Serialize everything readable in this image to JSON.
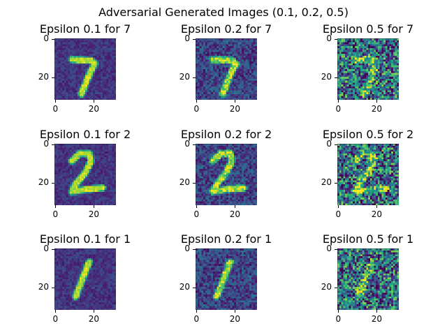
{
  "suptitle": "Adversarial Generated Images (0.1, 0.2, 0.5)",
  "chart_data": {
    "type": "heatmap",
    "colormap": "viridis",
    "grid": false,
    "image_size": [
      32,
      32
    ],
    "xlim": [
      0,
      31
    ],
    "ylim": [
      31,
      0
    ],
    "xticks": [
      "0",
      "20"
    ],
    "yticks": [
      "0",
      "20"
    ],
    "epsilons": [
      0.1,
      0.2,
      0.5
    ],
    "digits": [
      "7",
      "2",
      "1"
    ],
    "panels": [
      {
        "title": "Epsilon 0.1 for 7",
        "epsilon": 0.1,
        "digit": "7"
      },
      {
        "title": "Epsilon 0.2 for 7",
        "epsilon": 0.2,
        "digit": "7"
      },
      {
        "title": "Epsilon 0.5 for 7",
        "epsilon": 0.5,
        "digit": "7"
      },
      {
        "title": "Epsilon 0.1 for 2",
        "epsilon": 0.1,
        "digit": "2"
      },
      {
        "title": "Epsilon 0.2 for 2",
        "epsilon": 0.2,
        "digit": "2"
      },
      {
        "title": "Epsilon 0.5 for 2",
        "epsilon": 0.5,
        "digit": "2"
      },
      {
        "title": "Epsilon 0.1 for 1",
        "epsilon": 0.1,
        "digit": "1"
      },
      {
        "title": "Epsilon 0.2 for 1",
        "epsilon": 0.2,
        "digit": "1"
      },
      {
        "title": "Epsilon 0.5 for 1",
        "epsilon": 0.5,
        "digit": "1"
      }
    ]
  }
}
